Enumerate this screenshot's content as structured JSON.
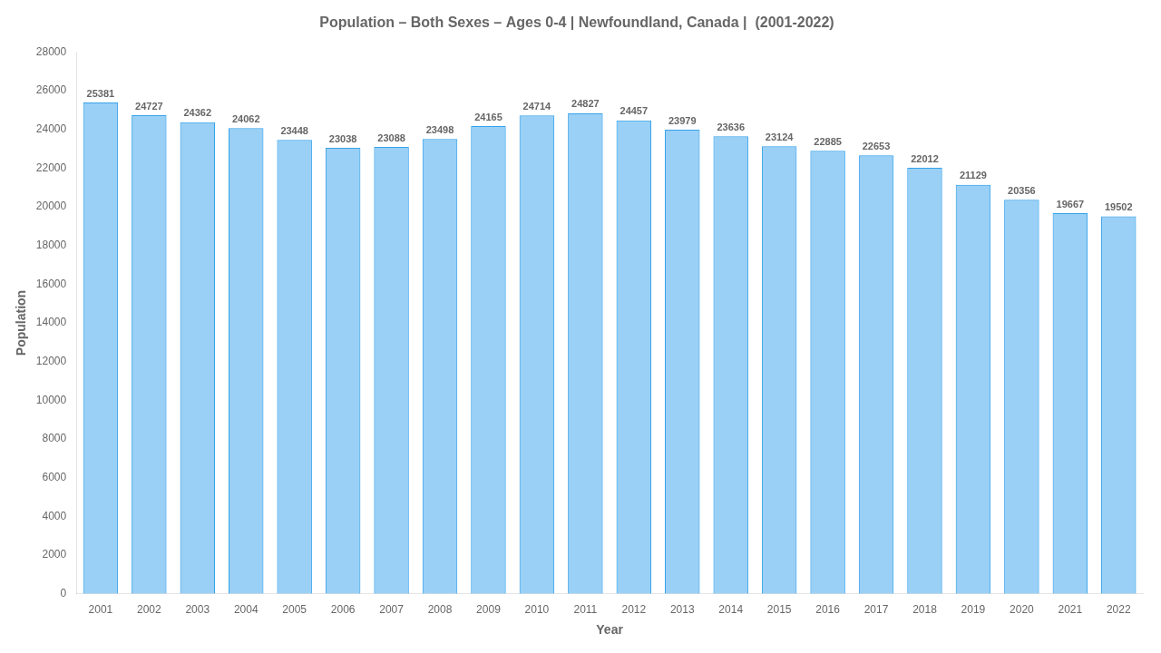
{
  "chart_data": {
    "type": "bar",
    "title": "Population – Both Sexes – Ages 0-4 | Newfoundland, Canada |  (2001-2022)",
    "xlabel": "Year",
    "ylabel": "Population",
    "categories": [
      "2001",
      "2002",
      "2003",
      "2004",
      "2005",
      "2006",
      "2007",
      "2008",
      "2009",
      "2010",
      "2011",
      "2012",
      "2013",
      "2014",
      "2015",
      "2016",
      "2017",
      "2018",
      "2019",
      "2020",
      "2021",
      "2022"
    ],
    "values": [
      25381,
      24727,
      24362,
      24062,
      23448,
      23038,
      23088,
      23498,
      24165,
      24714,
      24827,
      24457,
      23979,
      23636,
      23124,
      22885,
      22653,
      22012,
      21129,
      20356,
      19667,
      19502
    ],
    "ylim": [
      0,
      28000
    ],
    "yticks": [
      0,
      2000,
      4000,
      6000,
      8000,
      10000,
      12000,
      14000,
      16000,
      18000,
      20000,
      22000,
      24000,
      26000,
      28000
    ],
    "grid": false,
    "data_labels": true
  }
}
